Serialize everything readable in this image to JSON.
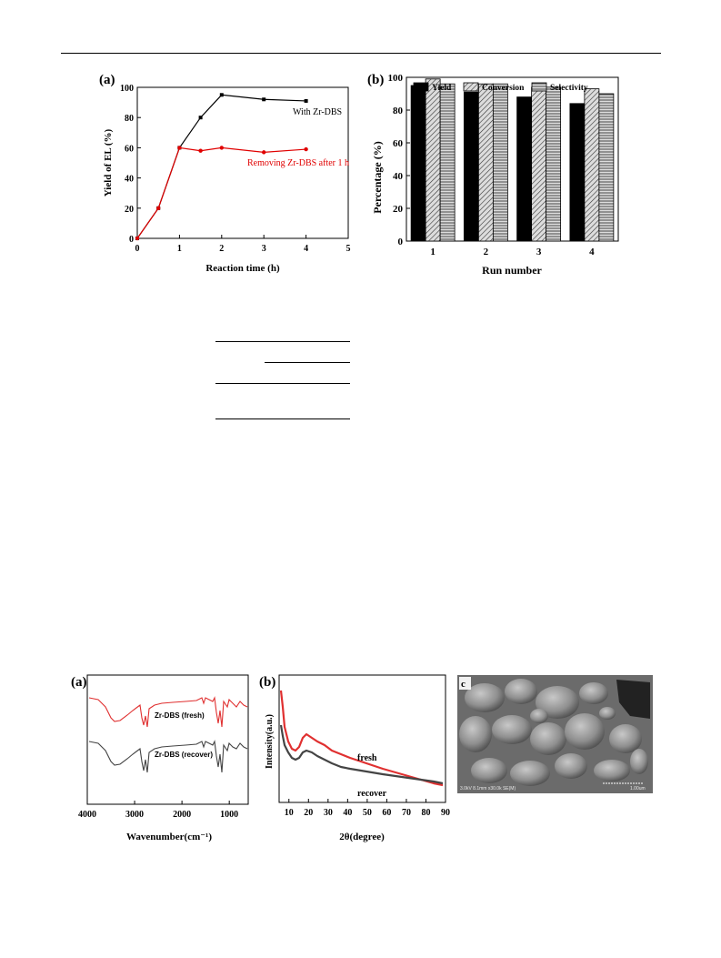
{
  "figure1": {
    "panel_a": {
      "panel_label": "(a)",
      "chart_data": {
        "type": "line",
        "xlabel": "Reaction time (h)",
        "ylabel": "Yield of EL (%)",
        "xlim": [
          0,
          5
        ],
        "ylim": [
          0,
          100
        ],
        "xticks": [
          "0",
          "1",
          "2",
          "3",
          "4",
          "5"
        ],
        "yticks": [
          "0",
          "20",
          "40",
          "60",
          "80",
          "100"
        ],
        "series": [
          {
            "name": "With Zr-DBS",
            "color": "#000000",
            "x": [
              0,
              0.5,
              1,
              1.5,
              2,
              3,
              4
            ],
            "y": [
              0,
              20,
              60,
              80,
              95,
              92,
              91
            ]
          },
          {
            "name": "Removing Zr-DBS after 1 h",
            "color": "#e00000",
            "x": [
              0,
              0.5,
              1,
              1.5,
              2,
              3,
              4
            ],
            "y": [
              0,
              20,
              60,
              58,
              60,
              57,
              59
            ]
          }
        ]
      }
    },
    "panel_b": {
      "panel_label": "(b)",
      "chart_data": {
        "type": "bar",
        "xlabel": "Run number",
        "ylabel": "Percentage (%)",
        "ylim": [
          0,
          100
        ],
        "yticks": [
          "0",
          "20",
          "40",
          "60",
          "80",
          "100"
        ],
        "categories": [
          "1",
          "2",
          "3",
          "4"
        ],
        "legend_placement": "top",
        "series": [
          {
            "name": "Yield",
            "pattern": "solid",
            "values": [
              95,
              91,
              88,
              84
            ]
          },
          {
            "name": "Conversion",
            "pattern": "diagonal",
            "values": [
              99,
              96,
              94,
              93
            ]
          },
          {
            "name": "Selectivity",
            "pattern": "horizontal",
            "values": [
              96,
              96,
              94,
              90
            ]
          }
        ]
      }
    }
  },
  "figure2": {
    "panel_a": {
      "panel_label": "(a)",
      "chart_data": {
        "type": "line",
        "xlabel": "Wavenumber(cm⁻¹)",
        "xlim": [
          4000,
          600
        ],
        "xticks": [
          "4000",
          "3000",
          "2000",
          "1000"
        ],
        "series": [
          {
            "name": "Zr-DBS (fresh)",
            "color": "#e03030"
          },
          {
            "name": "Zr-DBS (recover)",
            "color": "#444444"
          }
        ]
      }
    },
    "panel_b": {
      "panel_label": "(b)",
      "chart_data": {
        "type": "line",
        "xlabel": "2θ(degree)",
        "ylabel": "Intensity(a.u.)",
        "xlim": [
          5,
          90
        ],
        "xticks": [
          "10",
          "20",
          "30",
          "40",
          "50",
          "60",
          "70",
          "80",
          "90"
        ],
        "series": [
          {
            "name": "fresh",
            "color": "#e03030"
          },
          {
            "name": "recover",
            "color": "#444444"
          }
        ]
      }
    },
    "panel_c": {
      "panel_label": "c",
      "caption_bar": "3.0kV 8.1mm x30.0k SE(M)",
      "scale": "1.00um"
    }
  },
  "colors": {
    "red": "#e00000",
    "black": "#000000",
    "sem_gray": "#8a8a8a"
  }
}
